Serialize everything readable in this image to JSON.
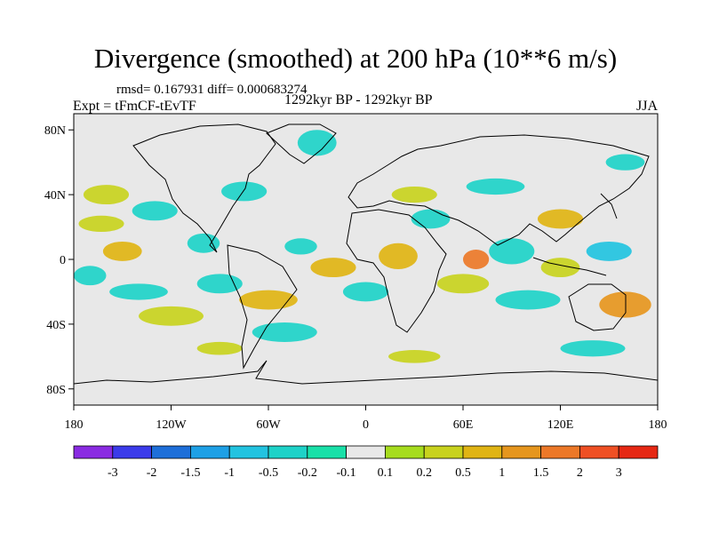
{
  "chart_data": {
    "type": "heatmap",
    "title": "Divergence (smoothed) at 200 hPa (10**6 m/s)",
    "stats": "rmsd= 0.167931 diff= 0.000683274",
    "experiment": "Expt = tFmCF-tEvTF",
    "period": "1292kyr BP - 1292kyr BP",
    "season": "JJA",
    "xlim": [
      -180,
      180
    ],
    "ylim": [
      -90,
      90
    ],
    "x_ticks": [
      -180,
      -120,
      -60,
      0,
      60,
      120,
      180
    ],
    "x_tick_labels": [
      "180",
      "120W",
      "60W",
      "0",
      "60E",
      "120E",
      "180"
    ],
    "y_ticks": [
      80,
      40,
      0,
      -40,
      -80
    ],
    "y_tick_labels": [
      "80N",
      "40N",
      "0",
      "40S",
      "80S"
    ],
    "colorbar": {
      "levels": [
        -3,
        -2,
        -1.5,
        -1,
        -0.5,
        -0.2,
        -0.1,
        0.1,
        0.2,
        0.5,
        1,
        1.5,
        2,
        3
      ],
      "level_labels": [
        "-3",
        "-2",
        "-1.5",
        "-1",
        "-0.5",
        "-0.2",
        "-0.1",
        "0.1",
        "0.2",
        "0.5",
        "1",
        "1.5",
        "2",
        "3"
      ],
      "colors": [
        "#8a2be2",
        "#3b3bea",
        "#1e6fd9",
        "#1ea0e6",
        "#22c3e0",
        "#1ed2c8",
        "#19e0a8",
        "#e8e8e8",
        "#a6dc1e",
        "#c8d21e",
        "#e0b414",
        "#e6961e",
        "#ec7828",
        "#ef5024",
        "#e62814"
      ]
    },
    "blobs": [
      {
        "lon": -150,
        "lat": 5,
        "rlon": 12,
        "rlat": 6,
        "value": 0.8
      },
      {
        "lon": -163,
        "lat": 22,
        "rlon": 14,
        "rlat": 5,
        "value": 0.3
      },
      {
        "lon": -130,
        "lat": 30,
        "rlon": 14,
        "rlat": 6,
        "value": -0.3
      },
      {
        "lon": -140,
        "lat": -20,
        "rlon": 18,
        "rlat": 5,
        "value": -0.4
      },
      {
        "lon": -170,
        "lat": -10,
        "rlon": 10,
        "rlat": 6,
        "value": -0.4
      },
      {
        "lon": -120,
        "lat": -35,
        "rlon": 20,
        "rlat": 6,
        "value": 0.4
      },
      {
        "lon": -160,
        "lat": 40,
        "rlon": 14,
        "rlat": 6,
        "value": 0.3
      },
      {
        "lon": -100,
        "lat": 10,
        "rlon": 10,
        "rlat": 6,
        "value": -0.3
      },
      {
        "lon": -75,
        "lat": 42,
        "rlon": 14,
        "rlat": 6,
        "value": -0.3
      },
      {
        "lon": -90,
        "lat": -15,
        "rlon": 14,
        "rlat": 6,
        "value": -0.4
      },
      {
        "lon": -60,
        "lat": -25,
        "rlon": 18,
        "rlat": 6,
        "value": 0.5
      },
      {
        "lon": -50,
        "lat": -45,
        "rlon": 20,
        "rlat": 6,
        "value": -0.4
      },
      {
        "lon": -30,
        "lat": 72,
        "rlon": 12,
        "rlat": 8,
        "value": -0.3
      },
      {
        "lon": -40,
        "lat": 8,
        "rlon": 10,
        "rlat": 5,
        "value": -0.3
      },
      {
        "lon": -20,
        "lat": -5,
        "rlon": 14,
        "rlat": 6,
        "value": 0.5
      },
      {
        "lon": 0,
        "lat": -20,
        "rlon": 14,
        "rlat": 6,
        "value": -0.3
      },
      {
        "lon": 20,
        "lat": 2,
        "rlon": 12,
        "rlat": 8,
        "value": 0.5
      },
      {
        "lon": 30,
        "lat": 40,
        "rlon": 14,
        "rlat": 5,
        "value": 0.3
      },
      {
        "lon": 40,
        "lat": 25,
        "rlon": 12,
        "rlat": 6,
        "value": -0.3
      },
      {
        "lon": 60,
        "lat": -15,
        "rlon": 16,
        "rlat": 6,
        "value": 0.4
      },
      {
        "lon": 68,
        "lat": 0,
        "rlon": 8,
        "rlat": 6,
        "value": 1.5
      },
      {
        "lon": 90,
        "lat": 5,
        "rlon": 14,
        "rlat": 8,
        "value": -0.5
      },
      {
        "lon": 100,
        "lat": -25,
        "rlon": 20,
        "rlat": 6,
        "value": -0.4
      },
      {
        "lon": 120,
        "lat": 25,
        "rlon": 14,
        "rlat": 6,
        "value": 0.5
      },
      {
        "lon": 120,
        "lat": -5,
        "rlon": 12,
        "rlat": 6,
        "value": 0.4
      },
      {
        "lon": 150,
        "lat": 5,
        "rlon": 14,
        "rlat": 6,
        "value": -0.8
      },
      {
        "lon": 160,
        "lat": -28,
        "rlon": 16,
        "rlat": 8,
        "value": 1.2
      },
      {
        "lon": 140,
        "lat": -55,
        "rlon": 20,
        "rlat": 5,
        "value": -0.3
      },
      {
        "lon": 30,
        "lat": -60,
        "rlon": 16,
        "rlat": 4,
        "value": 0.3
      },
      {
        "lon": -90,
        "lat": -55,
        "rlon": 14,
        "rlat": 4,
        "value": 0.3
      },
      {
        "lon": 80,
        "lat": 45,
        "rlon": 18,
        "rlat": 5,
        "value": -0.3
      },
      {
        "lon": 160,
        "lat": 60,
        "rlon": 12,
        "rlat": 5,
        "value": -0.3
      }
    ]
  }
}
